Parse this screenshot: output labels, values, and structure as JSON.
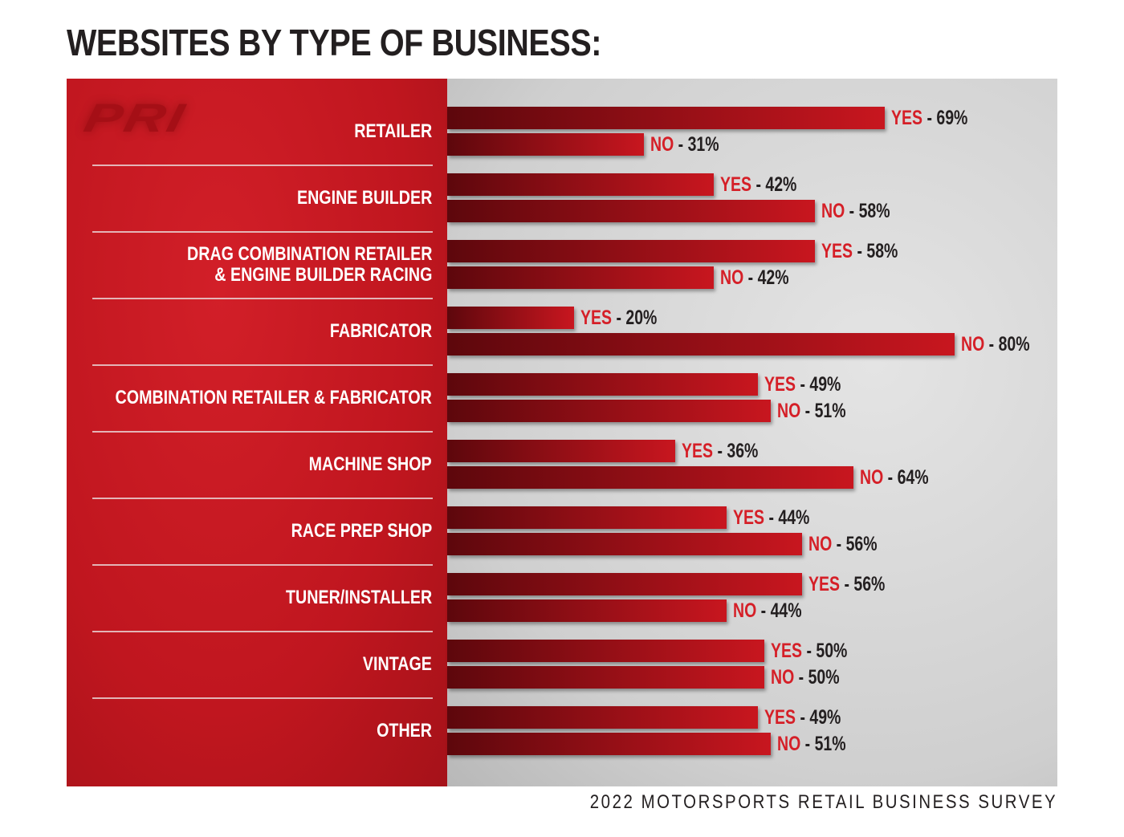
{
  "chart_data": {
    "type": "bar",
    "orientation": "horizontal",
    "title": "WEBSITES BY TYPE OF BUSINESS:",
    "source": "2022 MOTORSPORTS RETAIL BUSINESS SURVEY",
    "logo": "PRI",
    "categories": [
      "RETAILER",
      "ENGINE BUILDER",
      "DRAG COMBINATION RETAILER & ENGINE BUILDER RACING",
      "FABRICATOR",
      "COMBINATION RETAILER & FABRICATOR",
      "MACHINE SHOP",
      "RACE PREP SHOP",
      "TUNER/INSTALLER",
      "VINTAGE",
      "OTHER"
    ],
    "category_lines": [
      [
        "RETAILER"
      ],
      [
        "ENGINE BUILDER"
      ],
      [
        "DRAG COMBINATION RETAILER",
        "& ENGINE BUILDER RACING"
      ],
      [
        "FABRICATOR"
      ],
      [
        "COMBINATION RETAILER & FABRICATOR"
      ],
      [
        "MACHINE SHOP"
      ],
      [
        "RACE PREP SHOP"
      ],
      [
        "TUNER/INSTALLER"
      ],
      [
        "VINTAGE"
      ],
      [
        "OTHER"
      ]
    ],
    "series": [
      {
        "name": "YES",
        "values": [
          69,
          42,
          58,
          20,
          49,
          36,
          44,
          56,
          50,
          49
        ]
      },
      {
        "name": "NO",
        "values": [
          31,
          58,
          42,
          80,
          51,
          64,
          56,
          44,
          50,
          51
        ]
      }
    ],
    "unit": "%",
    "xlim": [
      0,
      85
    ],
    "colors": {
      "bar": "#c8161f",
      "bar_dark": "#5d070c",
      "key": "#d51f27",
      "panel": "#c0161f",
      "background": "#d4d4d4"
    }
  }
}
